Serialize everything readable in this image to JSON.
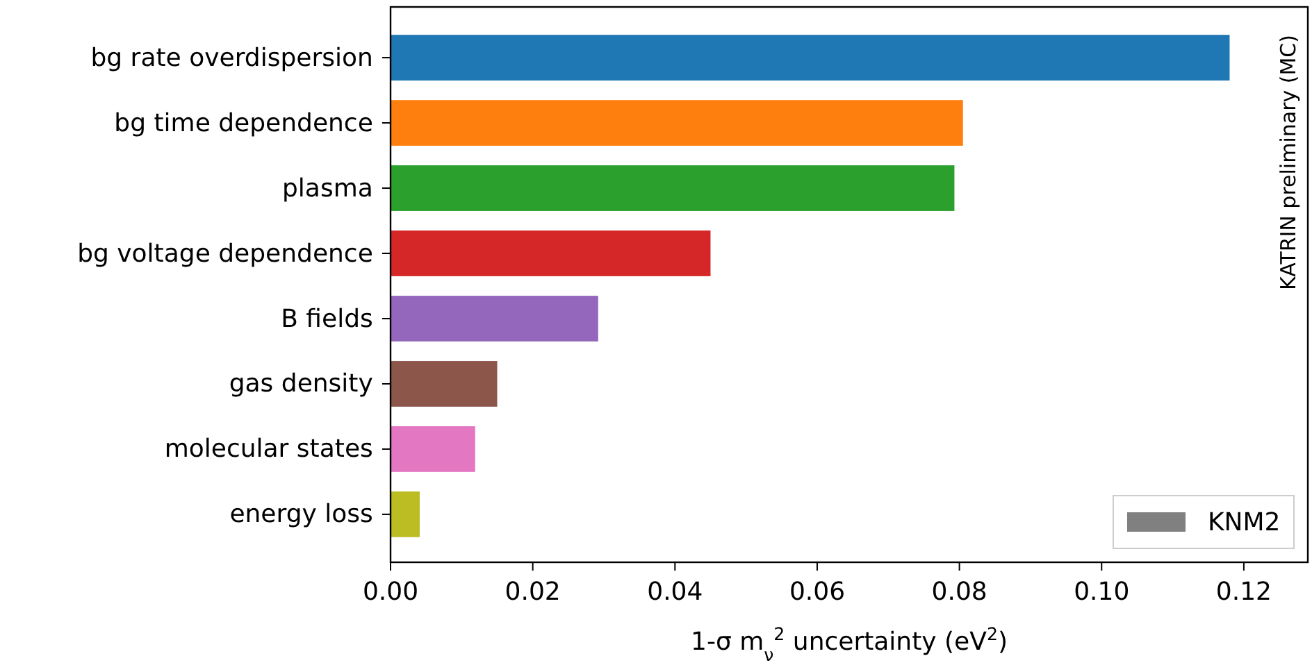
{
  "chart_data": {
    "type": "bar",
    "orientation": "horizontal",
    "categories": [
      "bg rate overdispersion",
      "bg time dependence",
      "plasma",
      "bg voltage dependence",
      "B fields",
      "gas density",
      "molecular states",
      "energy loss"
    ],
    "series": [
      {
        "name": "KNM2",
        "color": "#808080",
        "colors": [
          "#1f77b4",
          "#ff7f0e",
          "#2ca02c",
          "#d62728",
          "#9467bd",
          "#8c564b",
          "#e377c2",
          "#bcbd22"
        ],
        "values": [
          0.118,
          0.0805,
          0.0793,
          0.045,
          0.0292,
          0.015,
          0.0119,
          0.0041
        ]
      }
    ],
    "xlabel": "1-σ m$_{ν}$$^{2}$ uncertainty (eV$^{2}$)",
    "xlim": [
      0,
      0.129
    ],
    "xticks": [
      {
        "value": 0,
        "label": "0.00"
      },
      {
        "value": 0.02,
        "label": "0.02"
      },
      {
        "value": 0.04,
        "label": "0.04"
      },
      {
        "value": 0.06,
        "label": "0.06"
      },
      {
        "value": 0.08,
        "label": "0.08"
      },
      {
        "value": 0.1,
        "label": "0.10"
      },
      {
        "value": 0.12,
        "label": "0.12"
      }
    ],
    "annotations": [
      "KATRIN preliminary (MC)"
    ],
    "legend": "bottom right",
    "grid": false
  }
}
